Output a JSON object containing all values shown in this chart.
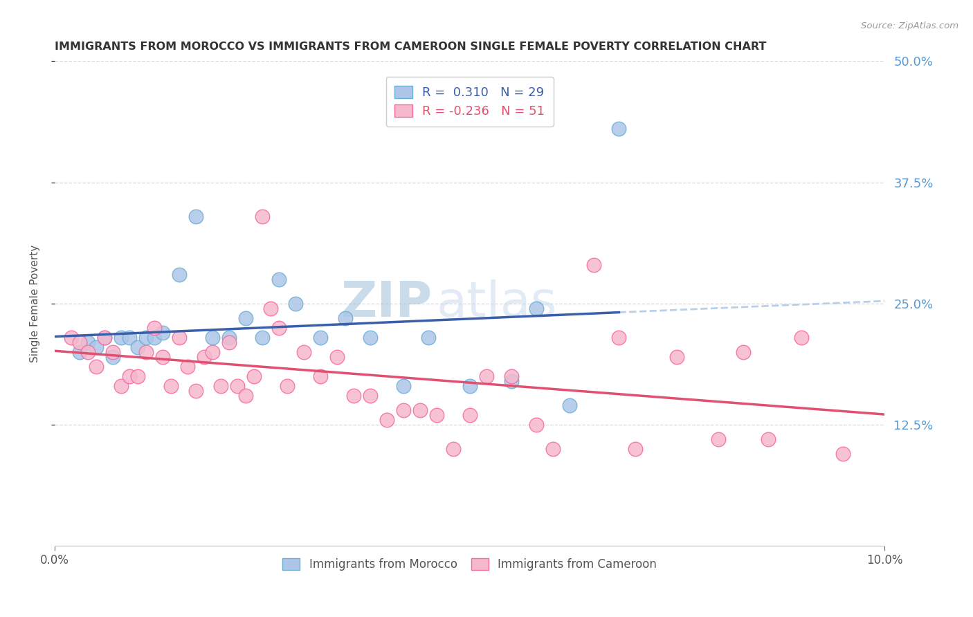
{
  "title": "IMMIGRANTS FROM MOROCCO VS IMMIGRANTS FROM CAMEROON SINGLE FEMALE POVERTY CORRELATION CHART",
  "source": "Source: ZipAtlas.com",
  "ylabel": "Single Female Poverty",
  "xlim": [
    0.0,
    0.1
  ],
  "ylim": [
    0.0,
    0.5
  ],
  "xtick_labels": [
    "0.0%",
    "10.0%"
  ],
  "ytick_labels": [
    "12.5%",
    "25.0%",
    "37.5%",
    "50.0%"
  ],
  "ytick_values": [
    0.125,
    0.25,
    0.375,
    0.5
  ],
  "xtick_values": [
    0.0,
    0.1
  ],
  "morocco_color": "#adc6e8",
  "cameroon_color": "#f5b8cd",
  "morocco_edge": "#6baed6",
  "cameroon_edge": "#f768a1",
  "line_morocco_color": "#3a5fa8",
  "line_cameroon_color": "#e05070",
  "line_dashed_color": "#b8d0ea",
  "R_morocco": 0.31,
  "N_morocco": 29,
  "R_cameroon": -0.236,
  "N_cameroon": 51,
  "morocco_x": [
    0.003,
    0.004,
    0.005,
    0.006,
    0.007,
    0.008,
    0.009,
    0.01,
    0.011,
    0.012,
    0.013,
    0.015,
    0.017,
    0.019,
    0.021,
    0.023,
    0.025,
    0.027,
    0.029,
    0.032,
    0.035,
    0.038,
    0.042,
    0.045,
    0.05,
    0.055,
    0.058,
    0.062,
    0.068
  ],
  "morocco_y": [
    0.2,
    0.21,
    0.205,
    0.215,
    0.195,
    0.215,
    0.215,
    0.205,
    0.215,
    0.215,
    0.22,
    0.28,
    0.34,
    0.215,
    0.215,
    0.235,
    0.215,
    0.275,
    0.25,
    0.215,
    0.235,
    0.215,
    0.165,
    0.215,
    0.165,
    0.17,
    0.245,
    0.145,
    0.43
  ],
  "cameroon_x": [
    0.002,
    0.003,
    0.004,
    0.005,
    0.006,
    0.007,
    0.008,
    0.009,
    0.01,
    0.011,
    0.012,
    0.013,
    0.014,
    0.015,
    0.016,
    0.017,
    0.018,
    0.019,
    0.02,
    0.021,
    0.022,
    0.023,
    0.024,
    0.025,
    0.026,
    0.027,
    0.028,
    0.03,
    0.032,
    0.034,
    0.036,
    0.038,
    0.04,
    0.042,
    0.044,
    0.046,
    0.048,
    0.05,
    0.052,
    0.055,
    0.058,
    0.06,
    0.065,
    0.068,
    0.07,
    0.075,
    0.08,
    0.083,
    0.086,
    0.09,
    0.095
  ],
  "cameroon_y": [
    0.215,
    0.21,
    0.2,
    0.185,
    0.215,
    0.2,
    0.165,
    0.175,
    0.175,
    0.2,
    0.225,
    0.195,
    0.165,
    0.215,
    0.185,
    0.16,
    0.195,
    0.2,
    0.165,
    0.21,
    0.165,
    0.155,
    0.175,
    0.34,
    0.245,
    0.225,
    0.165,
    0.2,
    0.175,
    0.195,
    0.155,
    0.155,
    0.13,
    0.14,
    0.14,
    0.135,
    0.1,
    0.135,
    0.175,
    0.175,
    0.125,
    0.1,
    0.29,
    0.215,
    0.1,
    0.195,
    0.11,
    0.2,
    0.11,
    0.215,
    0.095
  ],
  "morocco_line_x_start": 0.0,
  "morocco_line_x_end": 0.068,
  "cameroon_line_x_start": 0.0,
  "cameroon_line_x_end": 0.1,
  "watermark_zip": "ZIP",
  "watermark_atlas": "atlas",
  "background_color": "#ffffff",
  "grid_color": "#d0d0d0",
  "tick_color_right": "#5b9bd5",
  "legend_facecolor": "#ffffff"
}
